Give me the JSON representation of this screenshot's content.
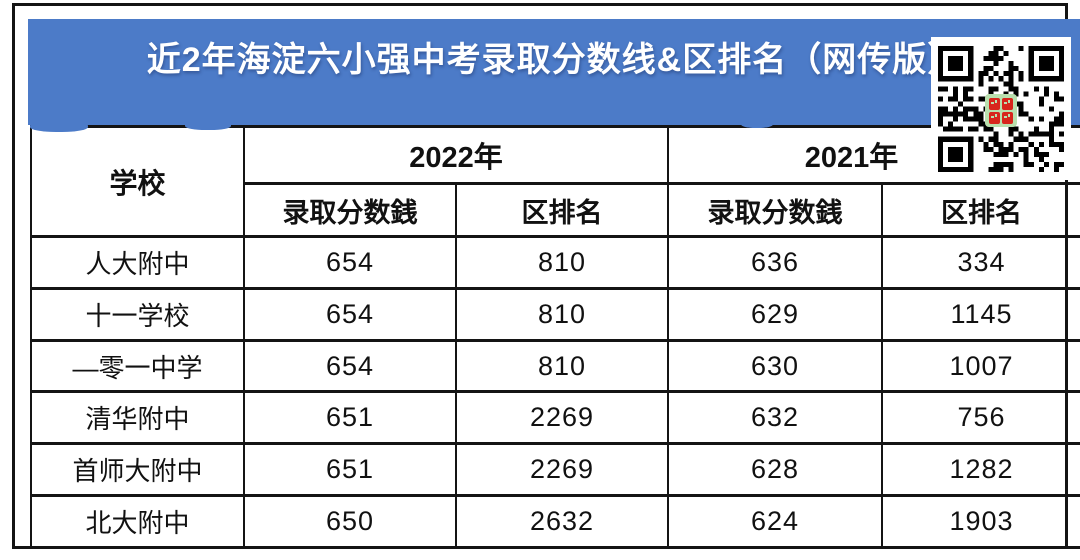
{
  "banner": {
    "title": "近2年海淀六小强中考录取分数线&区排名（网传版）",
    "bg_color": "#4c7bc8",
    "title_color": "#ffffff"
  },
  "icons": {
    "qr_code": "qr-code"
  },
  "qr": {
    "center_bg": "#b9e0ae",
    "center_mark_color": "#d8251c"
  },
  "table": {
    "school_header": "学校",
    "year_groups": [
      {
        "year": "2022年",
        "sub": [
          "录取分数銭",
          "区排名"
        ]
      },
      {
        "year": "2021年",
        "sub": [
          "录取分数銭",
          "区排名"
        ]
      }
    ],
    "rows": [
      {
        "school": "人大附中",
        "values": [
          "654",
          "810",
          "636",
          "334"
        ]
      },
      {
        "school": "十一学校",
        "values": [
          "654",
          "810",
          "629",
          "1145"
        ]
      },
      {
        "school": "—零一中学",
        "values": [
          "654",
          "810",
          "630",
          "1007"
        ]
      },
      {
        "school": "清华附中",
        "values": [
          "651",
          "2269",
          "632",
          "756"
        ]
      },
      {
        "school": "首师大附中",
        "values": [
          "651",
          "2269",
          "628",
          "1282"
        ]
      },
      {
        "school": "北大附中",
        "values": [
          "650",
          "2632",
          "624",
          "1903"
        ]
      }
    ]
  },
  "chart_data": {
    "type": "table",
    "title": "近2年海淀六小强中考录取分数线&区排名（网传版）",
    "column_groups": [
      "学校",
      "2022年",
      "2021年"
    ],
    "columns": [
      "学校",
      "2022年 录取分数銭",
      "2022年 区排名",
      "2021年 录取分数銭",
      "2021年 区排名"
    ],
    "rows": [
      [
        "人大附中",
        654,
        810,
        636,
        334
      ],
      [
        "十一学校",
        654,
        810,
        629,
        1145
      ],
      [
        "—零一中学",
        654,
        810,
        630,
        1007
      ],
      [
        "清华附中",
        651,
        2269,
        632,
        756
      ],
      [
        "首师大附中",
        651,
        2269,
        628,
        1282
      ],
      [
        "北大附中",
        650,
        2632,
        624,
        1903
      ]
    ]
  }
}
